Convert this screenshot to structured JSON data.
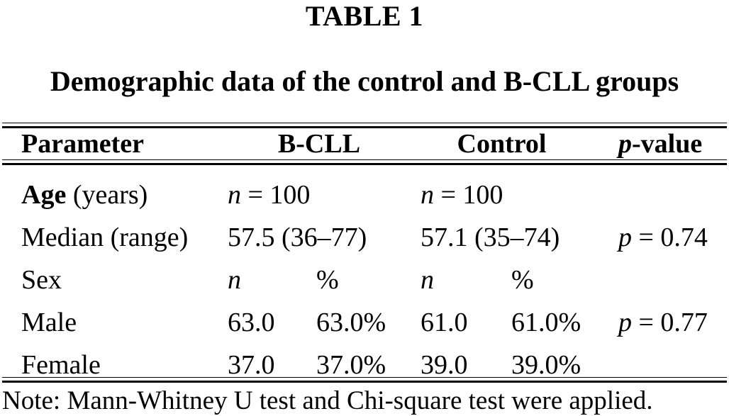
{
  "page": {
    "background_color": "#ffffff",
    "text_color": "#000000",
    "rule_color": "#000000"
  },
  "header": {
    "label": "TABLE 1",
    "caption": "Demographic data of the control and B-CLL groups"
  },
  "table": {
    "col_headers": {
      "parameter": "Parameter",
      "bcll": "B-CLL",
      "control": "Control",
      "pvalue_italic": "p",
      "pvalue_rest": "-value"
    },
    "rows": {
      "age": {
        "label_bold": "Age",
        "label_rest": " (years)",
        "bcll_italic": "n",
        "bcll_rest": " = 100",
        "control_italic": "n",
        "control_rest": " = 100",
        "pvalue": ""
      },
      "median": {
        "label": "Median (range)",
        "bcll": "57.5 (36–77)",
        "control": "57.1 (35–74)",
        "pvalue_italic": "p",
        "pvalue_rest": " = 0.74"
      },
      "sex": {
        "label": "Sex",
        "bcll_n_italic": "n",
        "bcll_pct": "%",
        "control_n_italic": "n",
        "control_pct": "%",
        "pvalue": ""
      },
      "male": {
        "label": "Male",
        "bcll_n": "63.0",
        "bcll_pct": "63.0%",
        "control_n": "61.0",
        "control_pct": "61.0%",
        "pvalue_italic": "p",
        "pvalue_rest": " = 0.77"
      },
      "female": {
        "label": "Female",
        "bcll_n": "37.0",
        "bcll_pct": "37.0%",
        "control_n": "39.0",
        "control_pct": "39.0%",
        "pvalue": ""
      }
    }
  },
  "note": "Note: Mann-Whitney U test and Chi-square test were applied."
}
